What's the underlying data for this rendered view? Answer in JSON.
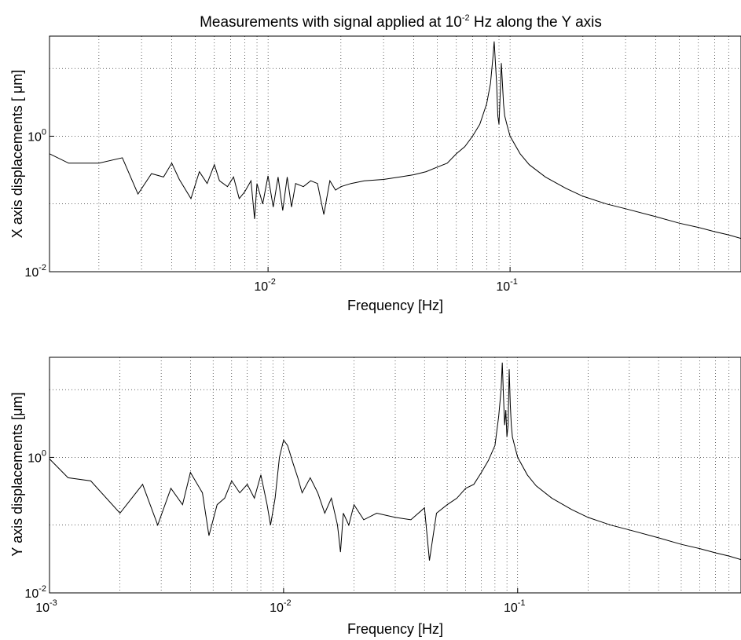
{
  "chart_data": [
    {
      "type": "line",
      "title": {
        "text_before": "Measurements with signal applied at  10",
        "text_sup": "-2",
        "text_after": " Hz along the Y axis"
      },
      "xlabel": "Frequency [Hz]",
      "ylabel": "X axis displacements [ μm]",
      "xscale": "log",
      "yscale": "log",
      "xlim": [
        0.00125,
        0.9
      ],
      "ylim": [
        0.01,
        30
      ],
      "grid": true,
      "x_ticks": [
        {
          "value": 0.01,
          "base": "10",
          "exp": "-2"
        },
        {
          "value": 0.1,
          "base": "10",
          "exp": "-1"
        }
      ],
      "y_ticks": [
        {
          "value": 0.01,
          "base": "10",
          "exp": "-2"
        },
        {
          "value": 1,
          "base": "10",
          "exp": "0"
        }
      ],
      "series": [
        {
          "values_x": [
            0.00125,
            0.0015,
            0.002,
            0.0025,
            0.0029,
            0.0033,
            0.0037,
            0.004,
            0.0043,
            0.0048,
            0.0052,
            0.0056,
            0.006,
            0.0063,
            0.0068,
            0.0072,
            0.0076,
            0.008,
            0.0085,
            0.0088,
            0.009,
            0.0095,
            0.01,
            0.0105,
            0.011,
            0.0115,
            0.012,
            0.0125,
            0.013,
            0.014,
            0.015,
            0.016,
            0.017,
            0.018,
            0.019,
            0.02,
            0.022,
            0.025,
            0.03,
            0.035,
            0.04,
            0.045,
            0.05,
            0.055,
            0.06,
            0.065,
            0.07,
            0.075,
            0.08,
            0.083,
            0.085,
            0.086,
            0.087,
            0.088,
            0.089,
            0.09,
            0.091,
            0.092,
            0.093,
            0.094,
            0.095,
            0.097,
            0.1,
            0.11,
            0.12,
            0.14,
            0.17,
            0.2,
            0.25,
            0.3,
            0.4,
            0.5,
            0.6,
            0.7,
            0.8,
            0.9
          ],
          "values_y": [
            0.55,
            0.4,
            0.4,
            0.48,
            0.14,
            0.28,
            0.25,
            0.4,
            0.23,
            0.12,
            0.3,
            0.2,
            0.38,
            0.22,
            0.18,
            0.25,
            0.12,
            0.15,
            0.22,
            0.06,
            0.2,
            0.1,
            0.26,
            0.09,
            0.25,
            0.08,
            0.25,
            0.09,
            0.2,
            0.18,
            0.22,
            0.2,
            0.07,
            0.22,
            0.16,
            0.18,
            0.2,
            0.22,
            0.23,
            0.25,
            0.27,
            0.3,
            0.35,
            0.4,
            0.55,
            0.7,
            1.0,
            1.5,
            3.0,
            6.0,
            15.0,
            25.0,
            12.0,
            6.0,
            2.0,
            1.5,
            4.0,
            12.0,
            6.0,
            3.0,
            2.0,
            1.5,
            1.0,
            0.55,
            0.38,
            0.25,
            0.17,
            0.13,
            0.1,
            0.085,
            0.065,
            0.052,
            0.045,
            0.039,
            0.035,
            0.031
          ]
        }
      ]
    },
    {
      "type": "line",
      "xlabel": "Frequency [Hz]",
      "ylabel": "Y axis displacements [μm]",
      "xscale": "log",
      "yscale": "log",
      "xlim": [
        0.001,
        0.9
      ],
      "ylim": [
        0.01,
        30
      ],
      "grid": true,
      "x_ticks": [
        {
          "value": 0.001,
          "base": "10",
          "exp": "-3"
        },
        {
          "value": 0.01,
          "base": "10",
          "exp": "-2"
        },
        {
          "value": 0.1,
          "base": "10",
          "exp": "-1"
        }
      ],
      "y_ticks": [
        {
          "value": 0.01,
          "base": "10",
          "exp": "-2"
        },
        {
          "value": 1,
          "base": "10",
          "exp": "0"
        }
      ],
      "series": [
        {
          "values_x": [
            0.001,
            0.0012,
            0.0015,
            0.002,
            0.0025,
            0.0029,
            0.0033,
            0.0037,
            0.004,
            0.0045,
            0.0048,
            0.0052,
            0.0056,
            0.006,
            0.0065,
            0.007,
            0.0075,
            0.008,
            0.0085,
            0.0088,
            0.0092,
            0.0096,
            0.01,
            0.0104,
            0.011,
            0.0115,
            0.012,
            0.013,
            0.014,
            0.015,
            0.016,
            0.017,
            0.0175,
            0.018,
            0.019,
            0.02,
            0.022,
            0.025,
            0.03,
            0.035,
            0.04,
            0.042,
            0.045,
            0.05,
            0.055,
            0.06,
            0.065,
            0.07,
            0.075,
            0.08,
            0.083,
            0.085,
            0.086,
            0.087,
            0.088,
            0.089,
            0.09,
            0.091,
            0.092,
            0.093,
            0.094,
            0.095,
            0.097,
            0.1,
            0.11,
            0.12,
            0.14,
            0.17,
            0.2,
            0.25,
            0.3,
            0.4,
            0.5,
            0.6,
            0.7,
            0.8,
            0.9
          ],
          "values_y": [
            0.95,
            0.5,
            0.45,
            0.15,
            0.4,
            0.1,
            0.35,
            0.2,
            0.6,
            0.3,
            0.07,
            0.2,
            0.25,
            0.45,
            0.3,
            0.4,
            0.25,
            0.55,
            0.2,
            0.1,
            0.25,
            1.0,
            1.8,
            1.5,
            0.8,
            0.5,
            0.3,
            0.5,
            0.3,
            0.15,
            0.25,
            0.1,
            0.04,
            0.15,
            0.1,
            0.2,
            0.12,
            0.15,
            0.13,
            0.12,
            0.18,
            0.03,
            0.15,
            0.2,
            0.25,
            0.35,
            0.4,
            0.6,
            0.9,
            1.5,
            4.0,
            10.0,
            25.0,
            8.0,
            3.0,
            5.0,
            2.0,
            3.0,
            20.0,
            6.0,
            3.0,
            2.0,
            1.5,
            1.0,
            0.55,
            0.38,
            0.25,
            0.17,
            0.13,
            0.1,
            0.085,
            0.065,
            0.052,
            0.045,
            0.039,
            0.035,
            0.031
          ]
        }
      ]
    }
  ]
}
